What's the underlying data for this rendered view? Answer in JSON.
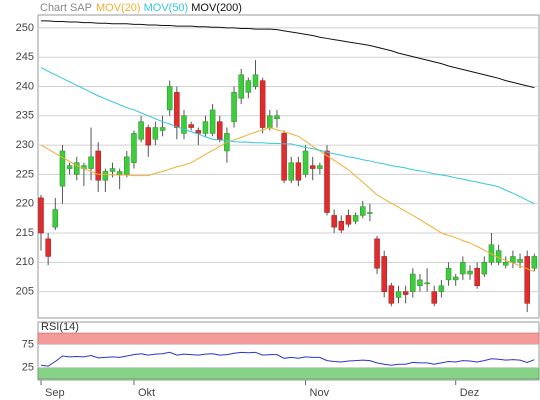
{
  "chart_data": [
    {
      "type": "candlestick",
      "title": "Chart SAP",
      "categories": [
        "Sep",
        null,
        null,
        null,
        null,
        null,
        null,
        null,
        null,
        null,
        null,
        null,
        null,
        "Okt",
        null,
        null,
        null,
        null,
        null,
        null,
        null,
        null,
        null,
        null,
        null,
        null,
        null,
        null,
        null,
        null,
        null,
        null,
        null,
        null,
        null,
        null,
        null,
        "Nov",
        null,
        null,
        null,
        null,
        null,
        null,
        null,
        null,
        null,
        null,
        null,
        null,
        null,
        null,
        null,
        null,
        null,
        null,
        null,
        null,
        "Dez",
        null,
        null,
        null,
        null,
        null,
        null,
        null,
        null,
        null,
        null,
        null
      ],
      "open": [
        221,
        214,
        216,
        223,
        226,
        225,
        226,
        226,
        229,
        224,
        225.5,
        225,
        225,
        227,
        231,
        233,
        231,
        232.5,
        236,
        239,
        232,
        233.5,
        232.5,
        232,
        232,
        234,
        229,
        234,
        238,
        239,
        240,
        241,
        233,
        234.5,
        232,
        224,
        227,
        225,
        226.5,
        226,
        229,
        218,
        217,
        218,
        217,
        218,
        218.5,
        214,
        211,
        206,
        204,
        205,
        205,
        206,
        206.5,
        205,
        205,
        207,
        207,
        208,
        208,
        209,
        208,
        210,
        210,
        209.5,
        210,
        210,
        211,
        209
      ],
      "high": [
        221.5,
        215,
        221,
        230,
        227,
        228,
        227,
        233,
        230.5,
        226,
        227,
        226,
        229,
        232.5,
        235,
        233.5,
        234,
        235,
        241,
        240,
        236,
        234,
        233,
        235,
        237,
        235,
        233,
        240,
        243,
        241.5,
        244.5,
        241.5,
        236,
        236,
        232.5,
        228,
        228,
        230,
        228,
        227,
        230,
        219,
        218,
        219,
        218.5,
        220.5,
        220,
        214.5,
        212,
        206.5,
        206,
        206,
        209,
        208,
        209,
        206,
        207,
        210,
        208,
        211,
        209.5,
        210,
        211,
        215,
        213,
        211,
        212,
        211.5,
        212,
        211.5
      ],
      "low": [
        212,
        209.5,
        215.5,
        220,
        225,
        224,
        223,
        224,
        222,
        222,
        224.5,
        222.5,
        224.5,
        226,
        230.5,
        228,
        230,
        231.5,
        235,
        231,
        231,
        232.5,
        230,
        231.5,
        231.5,
        230.5,
        227,
        233,
        237,
        238,
        239.5,
        232,
        232.5,
        233,
        223.5,
        223.5,
        223,
        224.5,
        224,
        225,
        218,
        215,
        215,
        216,
        216.5,
        217.5,
        217,
        208,
        204,
        202.5,
        203,
        203,
        204,
        205,
        205,
        202.5,
        204,
        206,
        206,
        207,
        207,
        205.5,
        207.5,
        209.5,
        209.5,
        209,
        209,
        209,
        201.5,
        208.5
      ],
      "close": [
        215,
        211,
        219,
        229,
        226.5,
        227,
        226.5,
        228,
        224,
        225.5,
        226,
        225.5,
        228,
        232,
        234,
        230,
        233,
        233,
        240,
        233,
        235,
        233,
        232,
        234,
        236,
        231,
        232,
        239,
        242,
        241,
        242,
        233,
        235,
        235,
        224,
        227,
        224,
        229,
        226,
        226.5,
        218.5,
        216,
        215.5,
        216.5,
        218,
        219.5,
        218.5,
        209,
        205,
        203,
        205,
        204.5,
        208,
        207,
        206.5,
        203,
        206,
        209,
        207.5,
        210,
        208.5,
        206,
        210,
        213,
        212,
        210,
        211,
        210.5,
        203,
        211
      ],
      "up_color": "#3ccc3c",
      "down_color": "#e02c2c",
      "series": [
        {
          "name": "MOV(20)",
          "color": "#f0b030",
          "values": [
            230,
            229.3,
            228.6,
            227.9,
            227.2,
            226.5,
            226,
            225.5,
            225,
            225,
            224.9,
            224.9,
            224.9,
            224.8,
            224.8,
            224.8,
            225.2,
            225.5,
            225.9,
            226.3,
            226.6,
            227,
            227.7,
            228.4,
            229.1,
            229.8,
            230.5,
            230.9,
            231.3,
            231.8,
            232.2,
            232.6,
            233,
            232.6,
            232.3,
            231.9,
            231.5,
            230.7,
            229.8,
            229,
            228.2,
            227.4,
            226.6,
            225.8,
            224.7,
            223.7,
            222.6,
            221.5,
            220.8,
            220.1,
            219.4,
            218.7,
            218,
            217.3,
            216.5,
            215.8,
            215,
            214.6,
            214.2,
            213.7,
            213.3,
            212.7,
            212.1,
            211.4,
            210.8,
            210.3,
            209.9,
            209.4,
            208.9,
            208.4
          ]
        },
        {
          "name": "MOV(50)",
          "color": "#33c8e0",
          "values": [
            243.2,
            242.6,
            242.0,
            241.4,
            240.8,
            240.2,
            239.6,
            239.0,
            238.4,
            237.9,
            237.4,
            236.9,
            236.4,
            236.0,
            235.5,
            235.0,
            234.5,
            234.0,
            233.6,
            233.1,
            232.7,
            232.3,
            231.9,
            231.4,
            231.0,
            230.9,
            230.8,
            230.6,
            230.5,
            230.5,
            230.4,
            230.4,
            230.3,
            230.3,
            230.2,
            230.2,
            229.9,
            229.6,
            229.4,
            229.1,
            228.8,
            228.5,
            228.3,
            228.0,
            227.8,
            227.5,
            227.3,
            227.0,
            226.8,
            226.5,
            226.3,
            226.1,
            225.8,
            225.6,
            225.4,
            225.1,
            224.9,
            224.7,
            224.4,
            224.2,
            223.9,
            223.7,
            223.4,
            223.2,
            222.9,
            222.3,
            221.8,
            221.2,
            220.6,
            220.0
          ]
        },
        {
          "name": "MOV(200)",
          "color": "#111111",
          "values": [
            251.2,
            251.2,
            251.1,
            251.1,
            251.0,
            251.0,
            250.9,
            250.9,
            250.8,
            250.8,
            250.7,
            250.7,
            250.7,
            250.6,
            250.6,
            250.5,
            250.5,
            250.4,
            250.4,
            250.3,
            250.3,
            250.3,
            250.2,
            250.2,
            250.1,
            250.1,
            250.0,
            250.0,
            249.9,
            249.9,
            249.8,
            249.8,
            249.8,
            249.7,
            249.5,
            249.3,
            249.1,
            248.9,
            248.7,
            248.4,
            248.2,
            248.0,
            247.8,
            247.6,
            247.4,
            247.2,
            247.0,
            246.7,
            246.4,
            246.1,
            245.7,
            245.4,
            245.1,
            244.8,
            244.5,
            244.2,
            243.9,
            243.5,
            243.2,
            242.9,
            242.6,
            242.3,
            242.0,
            241.7,
            241.4,
            241.0,
            240.7,
            240.4,
            240.1,
            239.8
          ]
        }
      ],
      "ylim": [
        200.5,
        252.2
      ],
      "yticks": [
        205,
        210,
        215,
        220,
        225,
        230,
        235,
        240,
        245,
        250
      ],
      "grid": true
    },
    {
      "type": "line",
      "title": "RSI(14)",
      "color": "#2838c8",
      "values": [
        30,
        28,
        38,
        50,
        48,
        49,
        48,
        51,
        46,
        47,
        48,
        47,
        50,
        53,
        55,
        52,
        54,
        55,
        58,
        52,
        54,
        53,
        52,
        54,
        55,
        52,
        53,
        56,
        58,
        57,
        58,
        52,
        53,
        53,
        45,
        47,
        45,
        48,
        47,
        47,
        40,
        38,
        37,
        39,
        40,
        41,
        40,
        35,
        32,
        30,
        32,
        32,
        36,
        35,
        35,
        32,
        35,
        38,
        37,
        40,
        39,
        37,
        40,
        44,
        43,
        41,
        42,
        41,
        36,
        42
      ],
      "ylim": [
        0,
        100
      ],
      "yticks": [
        25,
        75
      ],
      "upper_band_color": "#f49a9a",
      "lower_band_color": "#86d286"
    }
  ]
}
